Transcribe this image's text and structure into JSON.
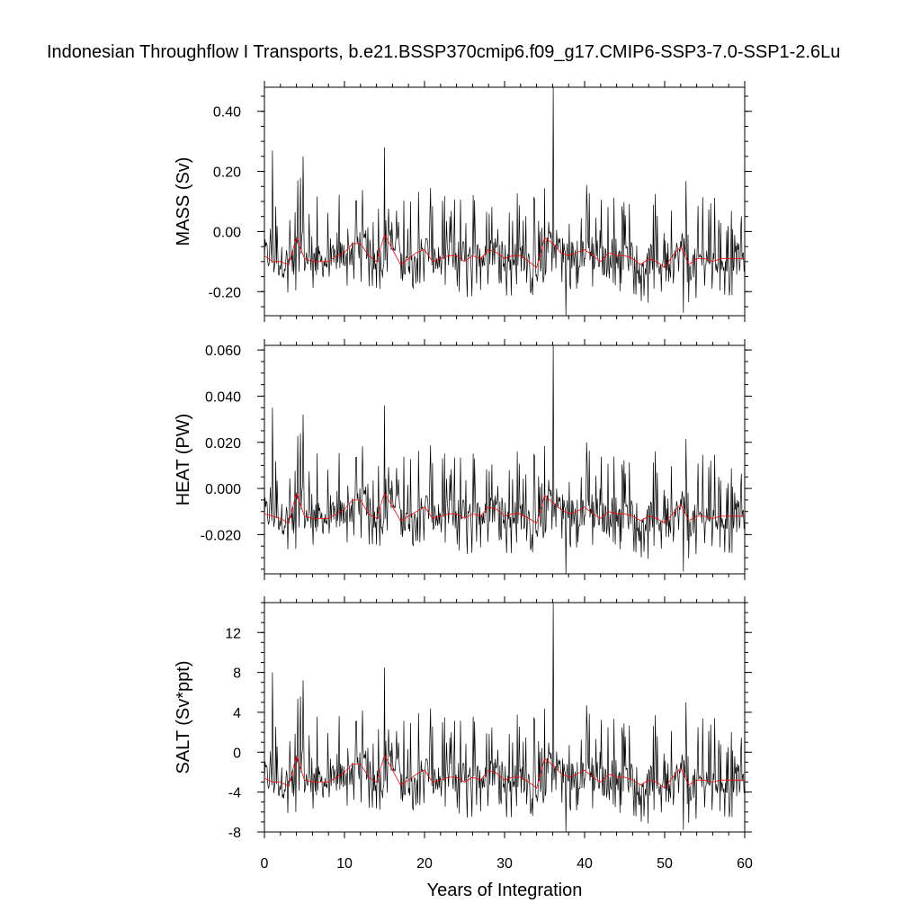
{
  "chart_data": {
    "type": "line",
    "title": "Indonesian Throughflow I Transports, b.e21.BSSP370cmip6.f09_g17.CMIP6-SSP3-7.0-SSP1-2.6Lu",
    "xlabel": "Years of Integration",
    "xlim": [
      0,
      60
    ],
    "xticks": [
      "0",
      "10",
      "20",
      "30",
      "40",
      "50",
      "60"
    ],
    "series_colors": {
      "monthly": "#000000",
      "annual_mean": "#ff0000"
    },
    "panels": [
      {
        "ylabel": "MASS (Sv)",
        "ylim": [
          -0.28,
          0.48
        ],
        "yticks": [
          {
            "value": 0.4,
            "label": "0.40"
          },
          {
            "value": 0.2,
            "label": "0.20"
          },
          {
            "value": 0.0,
            "label": "0.00"
          },
          {
            "value": -0.2,
            "label": "-0.20"
          }
        ],
        "key_points": [
          {
            "x": 0.2,
            "y": -0.05
          },
          {
            "x": 1.0,
            "y": 0.27
          },
          {
            "x": 4.8,
            "y": 0.25
          },
          {
            "x": 15.0,
            "y": 0.28
          },
          {
            "x": 36.1,
            "y": 0.48
          },
          {
            "x": 37.7,
            "y": -0.28
          },
          {
            "x": 52.3,
            "y": -0.27
          }
        ],
        "annual_mean": [
          -0.08,
          -0.1,
          -0.1,
          -0.11,
          -0.02,
          -0.09,
          -0.1,
          -0.1,
          -0.1,
          -0.08,
          -0.07,
          -0.04,
          -0.04,
          -0.08,
          -0.1,
          -0.01,
          -0.06,
          -0.11,
          -0.09,
          -0.07,
          -0.06,
          -0.1,
          -0.09,
          -0.08,
          -0.08,
          -0.1,
          -0.08,
          -0.09,
          -0.06,
          -0.07,
          -0.09,
          -0.08,
          -0.08,
          -0.1,
          -0.12,
          -0.02,
          -0.04,
          -0.07,
          -0.08,
          -0.07,
          -0.06,
          -0.08,
          -0.1,
          -0.07,
          -0.08,
          -0.08,
          -0.09,
          -0.11,
          -0.09,
          -0.1,
          -0.12,
          -0.08,
          -0.05,
          -0.11,
          -0.09,
          -0.09,
          -0.1,
          -0.09,
          -0.09,
          -0.09,
          -0.09
        ]
      },
      {
        "ylabel": "HEAT (PW)",
        "ylim": [
          -0.037,
          0.062
        ],
        "yticks": [
          {
            "value": 0.06,
            "label": "0.060"
          },
          {
            "value": 0.04,
            "label": "0.040"
          },
          {
            "value": 0.02,
            "label": "0.020"
          },
          {
            "value": 0.0,
            "label": "0.000"
          },
          {
            "value": -0.02,
            "label": "-0.020"
          }
        ],
        "key_points": [
          {
            "x": 0.2,
            "y": -0.008
          },
          {
            "x": 1.0,
            "y": 0.035
          },
          {
            "x": 4.8,
            "y": 0.032
          },
          {
            "x": 15.0,
            "y": 0.036
          },
          {
            "x": 36.1,
            "y": 0.062
          },
          {
            "x": 37.7,
            "y": -0.037
          },
          {
            "x": 52.3,
            "y": -0.036
          }
        ],
        "annual_mean": [
          -0.011,
          -0.012,
          -0.013,
          -0.015,
          -0.002,
          -0.012,
          -0.013,
          -0.013,
          -0.013,
          -0.011,
          -0.009,
          -0.005,
          -0.005,
          -0.011,
          -0.013,
          -0.002,
          -0.008,
          -0.014,
          -0.012,
          -0.01,
          -0.008,
          -0.013,
          -0.012,
          -0.011,
          -0.011,
          -0.013,
          -0.011,
          -0.012,
          -0.008,
          -0.009,
          -0.012,
          -0.011,
          -0.011,
          -0.013,
          -0.015,
          -0.003,
          -0.006,
          -0.009,
          -0.011,
          -0.01,
          -0.008,
          -0.011,
          -0.013,
          -0.01,
          -0.011,
          -0.011,
          -0.012,
          -0.014,
          -0.012,
          -0.013,
          -0.015,
          -0.011,
          -0.007,
          -0.014,
          -0.012,
          -0.012,
          -0.013,
          -0.012,
          -0.012,
          -0.012,
          -0.012
        ]
      },
      {
        "ylabel": "SALT (Sv*ppt)",
        "ylim": [
          -8,
          15
        ],
        "yticks": [
          {
            "value": 12,
            "label": "12"
          },
          {
            "value": 8,
            "label": "8"
          },
          {
            "value": 4,
            "label": "4"
          },
          {
            "value": 0,
            "label": "0"
          },
          {
            "value": -4,
            "label": "-4"
          },
          {
            "value": -8,
            "label": "-8"
          }
        ],
        "key_points": [
          {
            "x": 0.2,
            "y": -1.5
          },
          {
            "x": 1.0,
            "y": 8.0
          },
          {
            "x": 4.8,
            "y": 7.2
          },
          {
            "x": 15.0,
            "y": 8.5
          },
          {
            "x": 36.1,
            "y": 15.0
          },
          {
            "x": 37.7,
            "y": -8.0
          },
          {
            "x": 52.3,
            "y": -7.8
          }
        ],
        "annual_mean": [
          -2.6,
          -3.0,
          -3.0,
          -3.4,
          -0.4,
          -2.8,
          -3.0,
          -3.0,
          -3.0,
          -2.5,
          -2.0,
          -1.2,
          -1.2,
          -2.5,
          -3.0,
          -0.3,
          -1.8,
          -3.3,
          -2.8,
          -2.2,
          -1.8,
          -3.0,
          -2.8,
          -2.5,
          -2.5,
          -3.0,
          -2.5,
          -2.8,
          -1.8,
          -2.1,
          -2.8,
          -2.5,
          -2.5,
          -3.0,
          -3.6,
          -0.6,
          -1.3,
          -2.1,
          -2.5,
          -2.2,
          -1.8,
          -2.5,
          -3.0,
          -2.2,
          -2.5,
          -2.5,
          -2.8,
          -3.3,
          -2.8,
          -3.0,
          -3.6,
          -2.5,
          -1.6,
          -3.3,
          -2.8,
          -2.8,
          -3.0,
          -2.8,
          -2.8,
          -2.8,
          -2.8
        ]
      }
    ]
  }
}
